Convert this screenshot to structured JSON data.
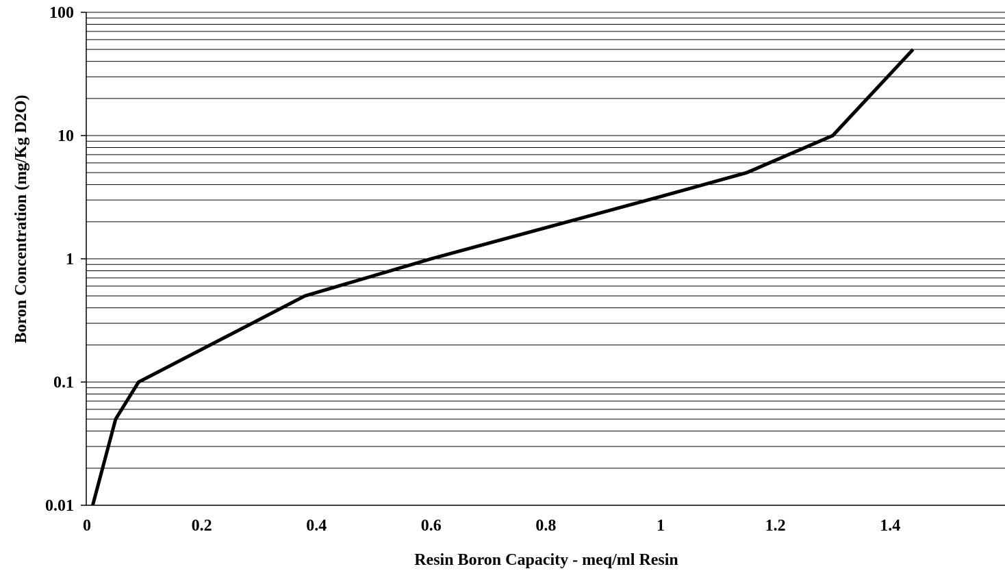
{
  "chart_data": {
    "type": "line",
    "title": "",
    "xlabel": "Resin Boron Capacity - meq/ml Resin",
    "ylabel": "Boron Concentration (mg/Kg D2O)",
    "x_scale": "linear",
    "y_scale": "log",
    "xlim": [
      0,
      1.6
    ],
    "ylim": [
      0.01,
      100
    ],
    "x_ticks": [
      0,
      0.2,
      0.4,
      0.6,
      0.8,
      1,
      1.2,
      1.4
    ],
    "x_tick_labels": [
      "0",
      "0.2",
      "0.4",
      "0.6",
      "0.8",
      "1",
      "1.2",
      "1.4"
    ],
    "y_ticks": [
      0.01,
      0.1,
      1,
      10,
      100
    ],
    "y_tick_labels": [
      "0.01",
      "0.1",
      "1",
      "10",
      "100"
    ],
    "grid": "horizontal major and minor gridlines",
    "legend": "none",
    "line_color": "#000000",
    "grid_color": "#000000",
    "series": [
      {
        "x": [
          0.01,
          0.05,
          0.09,
          0.38,
          0.6,
          1.0,
          1.15,
          1.3,
          1.44
        ],
        "y": [
          0.01,
          0.05,
          0.1,
          0.5,
          1,
          3.2,
          5,
          10,
          50
        ]
      }
    ]
  }
}
